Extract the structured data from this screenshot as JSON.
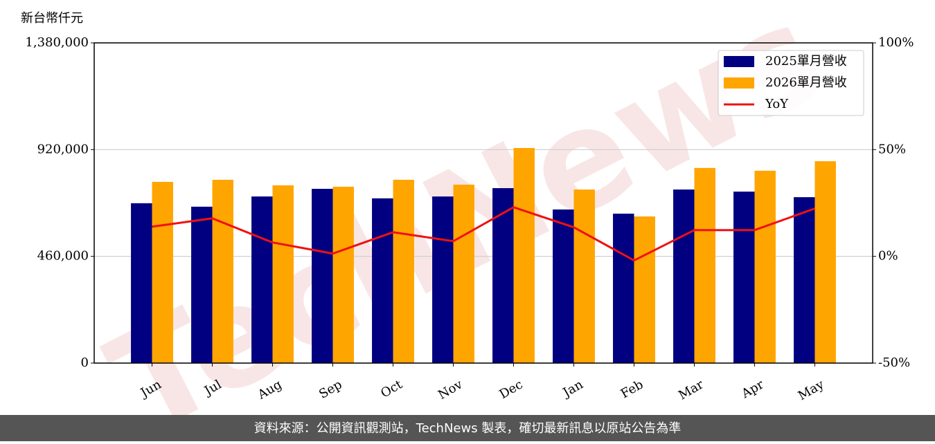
{
  "chart_data": {
    "type": "bar_line",
    "y_axis_title": "新台幣仟元",
    "categories": [
      "Jun",
      "Jul",
      "Aug",
      "Sep",
      "Oct",
      "Nov",
      "Dec",
      "Jan",
      "Feb",
      "Mar",
      "Apr",
      "May"
    ],
    "series": [
      {
        "name": "2025單月營收",
        "color": "#000080",
        "type": "bar",
        "values": [
          689000,
          674000,
          718000,
          751000,
          710000,
          718000,
          754000,
          662000,
          644000,
          748000,
          739000,
          715000
        ]
      },
      {
        "name": "2026單月營收",
        "color": "#ffa500",
        "type": "bar",
        "values": [
          781000,
          790000,
          766000,
          760000,
          790000,
          769000,
          927000,
          748000,
          632000,
          841000,
          829000,
          870000
        ]
      },
      {
        "name": "YoY",
        "color": "#ee1111",
        "type": "line",
        "axis": "y2",
        "values": [
          13.9,
          17.8,
          6.5,
          1.3,
          11.3,
          7.1,
          23.0,
          13.6,
          -1.9,
          12.3,
          12.3,
          22.4
        ]
      }
    ],
    "ylim": [
      0,
      1380000
    ],
    "yticks": [
      0,
      {
        "value": 460000,
        "label": "460,000"
      },
      {
        "value": 920000,
        "label": "920,000"
      },
      {
        "value": 1380000,
        "label": "1,380,000"
      }
    ],
    "y2lim": [
      -50,
      100
    ],
    "y2ticks": [
      {
        "value": -50,
        "label": "-50%"
      },
      {
        "value": 0,
        "label": "0%"
      },
      {
        "value": 50,
        "label": "50%"
      },
      {
        "value": 100,
        "label": "100%"
      }
    ],
    "grid": true,
    "legend": "upper right",
    "watermark": "TechNews",
    "footer": "資料來源：公開資訊觀測站，TechNews 製表，確切最新訊息以原站公告為準"
  }
}
